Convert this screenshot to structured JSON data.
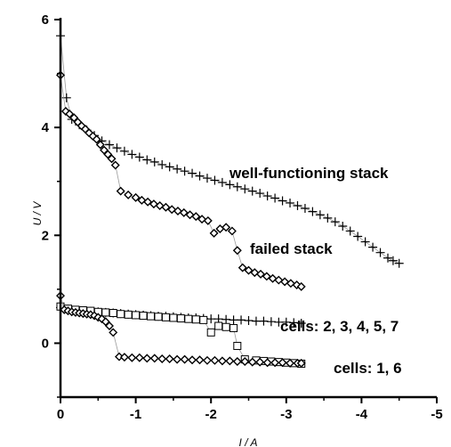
{
  "chart_data": {
    "type": "scatter",
    "xlabel": "I / A",
    "ylabel": "U / V",
    "xlim": [
      0,
      -5
    ],
    "ylim": [
      -1,
      6
    ],
    "xticks": [
      "0",
      "-1",
      "-2",
      "-3",
      "-4",
      "-5"
    ],
    "yticks": [
      "0",
      "2",
      "4",
      "6"
    ],
    "annotations": [
      "well-functioning stack",
      "failed stack",
      "cells: 2, 3, 4, 5, 7",
      "cells: 1, 6"
    ],
    "series": [
      {
        "marker": "plus",
        "connected": true,
        "x": [
          0,
          -0.08,
          -0.15,
          -0.25,
          -0.35,
          -0.45,
          -0.55,
          -0.65,
          -0.75,
          -0.85,
          -0.95,
          -1.05,
          -1.15,
          -1.25,
          -1.35,
          -1.45,
          -1.55,
          -1.65,
          -1.75,
          -1.85,
          -1.95,
          -2.05,
          -2.15,
          -2.25,
          -2.35,
          -2.45,
          -2.55,
          -2.65,
          -2.75,
          -2.85,
          -2.95,
          -3.05,
          -3.15,
          -3.25,
          -3.35,
          -3.45,
          -3.55,
          -3.65,
          -3.75,
          -3.85,
          -3.95,
          -4.05,
          -4.15,
          -4.25,
          -4.35,
          -4.42,
          -4.5
        ],
        "y": [
          5.7,
          4.55,
          4.15,
          4.05,
          3.95,
          3.85,
          3.75,
          3.68,
          3.62,
          3.56,
          3.5,
          3.45,
          3.4,
          3.36,
          3.31,
          3.27,
          3.23,
          3.19,
          3.15,
          3.1,
          3.06,
          3.02,
          2.98,
          2.94,
          2.9,
          2.86,
          2.82,
          2.78,
          2.73,
          2.69,
          2.64,
          2.6,
          2.55,
          2.5,
          2.44,
          2.38,
          2.32,
          2.25,
          2.17,
          2.08,
          1.98,
          1.88,
          1.78,
          1.68,
          1.58,
          1.53,
          1.48
        ]
      },
      {
        "marker": "diamond",
        "connected": true,
        "x": [
          0,
          -0.07,
          -0.12,
          -0.18,
          -0.23,
          -0.28,
          -0.33,
          -0.38,
          -0.43,
          -0.48,
          -0.53,
          -0.58,
          -0.63,
          -0.68,
          -0.73,
          -0.8,
          -0.9,
          -1.0,
          -1.08,
          -1.16,
          -1.24,
          -1.32,
          -1.4,
          -1.48,
          -1.56,
          -1.64,
          -1.72,
          -1.8,
          -1.88,
          -1.96,
          -2.04,
          -2.12,
          -2.2,
          -2.28,
          -2.35,
          -2.42,
          -2.5,
          -2.58,
          -2.66,
          -2.74,
          -2.82,
          -2.9,
          -2.98,
          -3.06,
          -3.14,
          -3.2
        ],
        "y": [
          4.97,
          4.3,
          4.25,
          4.18,
          4.1,
          4.03,
          3.97,
          3.9,
          3.84,
          3.78,
          3.68,
          3.58,
          3.5,
          3.42,
          3.3,
          2.82,
          2.75,
          2.7,
          2.65,
          2.62,
          2.58,
          2.55,
          2.52,
          2.48,
          2.45,
          2.42,
          2.38,
          2.35,
          2.3,
          2.27,
          2.04,
          2.12,
          2.15,
          2.08,
          1.72,
          1.4,
          1.35,
          1.31,
          1.28,
          1.24,
          1.2,
          1.17,
          1.14,
          1.11,
          1.08,
          1.05
        ]
      },
      {
        "marker": "plus",
        "connected": false,
        "x": [
          0,
          -0.1,
          -0.2,
          -0.3,
          -0.4,
          -0.5,
          -0.6,
          -0.7,
          -0.8,
          -0.9,
          -1.0,
          -1.1,
          -1.2,
          -1.3,
          -1.4,
          -1.5,
          -1.6,
          -1.7,
          -1.8,
          -1.9,
          -2.0,
          -2.1,
          -2.2,
          -2.3,
          -2.4,
          -2.5,
          -2.6,
          -2.7,
          -2.8,
          -2.9,
          -3.0,
          -3.1,
          -3.2
        ],
        "y": [
          0.66,
          0.63,
          0.61,
          0.6,
          0.59,
          0.58,
          0.57,
          0.56,
          0.55,
          0.54,
          0.53,
          0.52,
          0.51,
          0.5,
          0.5,
          0.49,
          0.48,
          0.47,
          0.47,
          0.46,
          0.45,
          0.45,
          0.44,
          0.43,
          0.43,
          0.42,
          0.41,
          0.41,
          0.4,
          0.39,
          0.39,
          0.38,
          0.37
        ]
      },
      {
        "marker": "square",
        "connected": true,
        "x": [
          0,
          -0.1,
          -0.2,
          -0.3,
          -0.4,
          -0.5,
          -0.6,
          -0.7,
          -0.8,
          -0.9,
          -1.0,
          -1.1,
          -1.2,
          -1.3,
          -1.4,
          -1.5,
          -1.6,
          -1.7,
          -1.8,
          -1.9,
          -2.0,
          -2.1,
          -2.2,
          -2.3,
          -2.35,
          -2.45,
          -2.6,
          -2.7,
          -2.8,
          -2.9,
          -3.0,
          -3.1,
          -3.2
        ],
        "y": [
          0.68,
          0.64,
          0.62,
          0.61,
          0.6,
          0.58,
          0.57,
          0.56,
          0.54,
          0.53,
          0.52,
          0.51,
          0.5,
          0.49,
          0.48,
          0.47,
          0.46,
          0.45,
          0.44,
          0.43,
          0.2,
          0.32,
          0.3,
          0.28,
          -0.05,
          -0.3,
          -0.32,
          -0.33,
          -0.34,
          -0.35,
          -0.36,
          -0.37,
          -0.38
        ]
      },
      {
        "marker": "diamond",
        "connected": true,
        "x": [
          0,
          -0.05,
          -0.1,
          -0.15,
          -0.2,
          -0.25,
          -0.3,
          -0.35,
          -0.4,
          -0.45,
          -0.5,
          -0.55,
          -0.6,
          -0.65,
          -0.7,
          -0.78,
          -0.85,
          -0.95,
          -1.05,
          -1.15,
          -1.25,
          -1.35,
          -1.45,
          -1.55,
          -1.65,
          -1.75,
          -1.85,
          -1.95,
          -2.05,
          -2.15,
          -2.25,
          -2.35,
          -2.45,
          -2.55,
          -2.65,
          -2.75,
          -2.85,
          -2.95,
          -3.05,
          -3.15,
          -3.2
        ],
        "y": [
          0.88,
          0.62,
          0.6,
          0.58,
          0.57,
          0.56,
          0.55,
          0.54,
          0.53,
          0.51,
          0.48,
          0.45,
          0.4,
          0.32,
          0.2,
          -0.25,
          -0.26,
          -0.27,
          -0.27,
          -0.28,
          -0.28,
          -0.29,
          -0.29,
          -0.3,
          -0.3,
          -0.31,
          -0.31,
          -0.32,
          -0.32,
          -0.33,
          -0.33,
          -0.34,
          -0.34,
          -0.35,
          -0.35,
          -0.36,
          -0.36,
          -0.36,
          -0.37,
          -0.37,
          -0.37
        ]
      }
    ]
  }
}
